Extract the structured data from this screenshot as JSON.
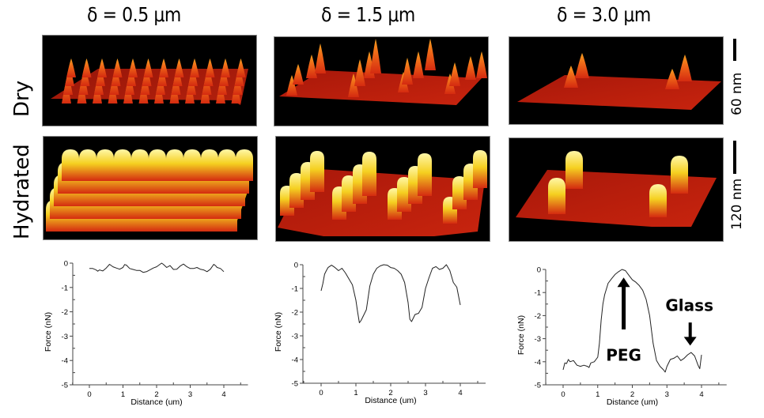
{
  "figure": {
    "columns": [
      {
        "title": "δ = 0.5 μm",
        "spacing_um": 0.5
      },
      {
        "title": "δ = 1.5 μm",
        "spacing_um": 1.5
      },
      {
        "title": "δ = 3.0 μm",
        "spacing_um": 3.0
      }
    ],
    "rows": [
      {
        "label": "Dry",
        "scale_bar": "60 nm"
      },
      {
        "label": "Hydrated",
        "scale_bar": "120 nm"
      }
    ],
    "colors": {
      "surface_low": "#8a0c05",
      "surface_mid": "#d42a10",
      "peak_dry": "#f3a020",
      "peak_hydrated": "#fff7a8",
      "background": "#000000",
      "line": "#222222"
    }
  },
  "chart_data": [
    {
      "type": "line",
      "panel": "δ = 0.5 μm",
      "title": "",
      "xlabel": "Distance (um)",
      "ylabel": "Force (nN)",
      "xlim": [
        -0.8,
        5.0
      ],
      "ylim": [
        -5,
        0
      ],
      "xticks": [
        0,
        1,
        2,
        3,
        4
      ],
      "yticks": [
        0,
        -1,
        -2,
        -3,
        -4,
        -5
      ],
      "grid": false,
      "series": [
        {
          "name": "force",
          "x": [
            0.0,
            0.1,
            0.2,
            0.25,
            0.3,
            0.4,
            0.5,
            0.6,
            0.7,
            0.8,
            0.9,
            1.0,
            1.05,
            1.1,
            1.2,
            1.3,
            1.4,
            1.5,
            1.6,
            1.7,
            1.8,
            1.9,
            2.0,
            2.1,
            2.15,
            2.2,
            2.3,
            2.4,
            2.5,
            2.6,
            2.7,
            2.8,
            2.9,
            3.0,
            3.1,
            3.2,
            3.3,
            3.4,
            3.5,
            3.6,
            3.7,
            3.75,
            3.8,
            3.9,
            4.0
          ],
          "y": [
            -0.22,
            -0.22,
            -0.28,
            -0.33,
            -0.28,
            -0.32,
            -0.2,
            -0.05,
            -0.15,
            -0.2,
            -0.25,
            -0.18,
            -0.06,
            -0.08,
            -0.22,
            -0.26,
            -0.3,
            -0.3,
            -0.38,
            -0.35,
            -0.28,
            -0.2,
            -0.15,
            -0.05,
            0.0,
            -0.05,
            -0.18,
            -0.1,
            -0.26,
            -0.25,
            -0.12,
            -0.04,
            -0.15,
            -0.22,
            -0.22,
            -0.18,
            -0.25,
            -0.28,
            -0.35,
            -0.25,
            -0.05,
            -0.1,
            -0.18,
            -0.22,
            -0.35
          ]
        }
      ]
    },
    {
      "type": "line",
      "panel": "δ = 1.5 μm",
      "title": "",
      "xlabel": "Distance (um)",
      "ylabel": "Force (nN)",
      "xlim": [
        -0.8,
        5.0
      ],
      "ylim": [
        -5,
        0
      ],
      "xticks": [
        0,
        1,
        2,
        3,
        4
      ],
      "yticks": [
        0,
        -1,
        -2,
        -3,
        -4,
        -5
      ],
      "grid": false,
      "series": [
        {
          "name": "force",
          "x": [
            0.0,
            0.05,
            0.1,
            0.15,
            0.2,
            0.3,
            0.4,
            0.5,
            0.6,
            0.7,
            0.8,
            0.9,
            1.0,
            1.05,
            1.1,
            1.15,
            1.2,
            1.3,
            1.4,
            1.5,
            1.6,
            1.7,
            1.8,
            1.9,
            2.0,
            2.1,
            2.2,
            2.3,
            2.4,
            2.5,
            2.55,
            2.6,
            2.7,
            2.8,
            2.9,
            2.95,
            3.0,
            3.1,
            3.2,
            3.3,
            3.4,
            3.5,
            3.6,
            3.7,
            3.8,
            3.9,
            4.0
          ],
          "y": [
            -1.1,
            -0.8,
            -0.4,
            -0.25,
            -0.12,
            -0.02,
            -0.12,
            -0.25,
            -0.15,
            -0.35,
            -0.6,
            -0.85,
            -1.5,
            -2.0,
            -2.45,
            -2.35,
            -2.2,
            -1.9,
            -0.9,
            -0.4,
            -0.15,
            -0.05,
            0.0,
            -0.02,
            -0.12,
            -0.15,
            -0.25,
            -0.4,
            -0.75,
            -1.6,
            -2.3,
            -2.4,
            -2.1,
            -2.05,
            -1.8,
            -1.4,
            -1.0,
            -0.55,
            -0.15,
            -0.08,
            -0.2,
            -0.15,
            0.0,
            -0.25,
            -0.75,
            -0.95,
            -1.7
          ]
        }
      ]
    },
    {
      "type": "line",
      "panel": "δ = 3.0 μm",
      "title": "",
      "xlabel": "Distance (um)",
      "ylabel": "Force (nN)",
      "xlim": [
        -0.8,
        5.0
      ],
      "ylim": [
        -5,
        0
      ],
      "xticks": [
        0,
        1,
        2,
        3,
        4
      ],
      "yticks": [
        0,
        -1,
        -2,
        -3,
        -4,
        -5
      ],
      "grid": false,
      "annotations": [
        {
          "text": "PEG",
          "arrow": "up",
          "x": 1.75,
          "y": -3.3
        },
        {
          "text": "Glass",
          "arrow": "down",
          "x": 3.65,
          "y": -1.6
        }
      ],
      "series": [
        {
          "name": "force",
          "x": [
            0.0,
            0.05,
            0.1,
            0.15,
            0.2,
            0.3,
            0.4,
            0.5,
            0.6,
            0.7,
            0.75,
            0.8,
            0.9,
            1.0,
            1.05,
            1.1,
            1.15,
            1.2,
            1.3,
            1.4,
            1.5,
            1.6,
            1.7,
            1.8,
            1.9,
            2.0,
            2.1,
            2.2,
            2.3,
            2.4,
            2.5,
            2.6,
            2.7,
            2.8,
            2.9,
            2.95,
            3.0,
            3.1,
            3.2,
            3.3,
            3.4,
            3.5,
            3.6,
            3.7,
            3.8,
            3.9,
            3.95,
            4.0
          ],
          "y": [
            -4.35,
            -4.05,
            -4.08,
            -3.9,
            -4.0,
            -3.95,
            -4.15,
            -4.2,
            -4.15,
            -4.2,
            -4.25,
            -4.05,
            -4.0,
            -3.8,
            -3.2,
            -2.2,
            -1.5,
            -1.1,
            -0.6,
            -0.4,
            -0.22,
            -0.1,
            0.0,
            -0.05,
            -0.25,
            -0.45,
            -0.55,
            -0.7,
            -0.9,
            -1.3,
            -2.0,
            -3.2,
            -3.95,
            -4.2,
            -4.35,
            -4.45,
            -4.2,
            -3.9,
            -3.85,
            -3.75,
            -3.95,
            -3.85,
            -3.7,
            -3.6,
            -3.75,
            -4.15,
            -4.3,
            -3.7
          ]
        }
      ]
    }
  ]
}
